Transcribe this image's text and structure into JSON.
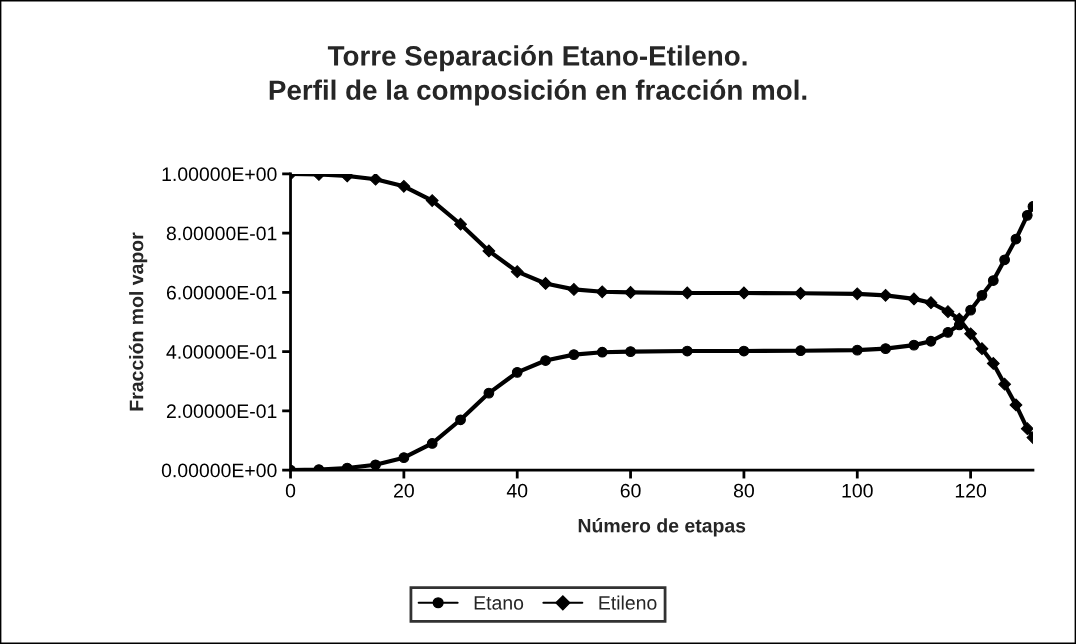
{
  "chart_data": {
    "type": "line",
    "title": "Torre Separación Etano-Etileno.\nPerfil de la composición en fracción mol.",
    "xlabel": "Número de etapas",
    "ylabel": "Fracción mol vapor",
    "x": [
      0,
      5,
      10,
      15,
      20,
      25,
      30,
      35,
      40,
      45,
      50,
      55,
      60,
      70,
      80,
      90,
      100,
      105,
      110,
      113,
      116,
      118,
      120,
      122,
      124,
      126,
      128,
      130,
      131
    ],
    "series": [
      {
        "name": "Etano",
        "color": "#000000",
        "marker": "circle",
        "values": [
          0.0,
          0.002,
          0.007,
          0.018,
          0.042,
          0.09,
          0.17,
          0.26,
          0.33,
          0.37,
          0.39,
          0.398,
          0.4,
          0.402,
          0.402,
          0.403,
          0.405,
          0.41,
          0.422,
          0.435,
          0.465,
          0.49,
          0.54,
          0.59,
          0.64,
          0.71,
          0.78,
          0.86,
          0.89
        ]
      },
      {
        "name": "Etileno",
        "color": "#000000",
        "marker": "diamond",
        "values": [
          1.0,
          0.998,
          0.993,
          0.982,
          0.958,
          0.91,
          0.83,
          0.74,
          0.67,
          0.63,
          0.61,
          0.602,
          0.6,
          0.598,
          0.598,
          0.597,
          0.595,
          0.59,
          0.578,
          0.565,
          0.535,
          0.51,
          0.46,
          0.41,
          0.36,
          0.29,
          0.22,
          0.14,
          0.11
        ]
      }
    ],
    "xlim": [
      0,
      131
    ],
    "xticks": [
      0,
      20,
      40,
      60,
      80,
      100,
      120
    ],
    "ylim": [
      0,
      1
    ],
    "yticks": [
      {
        "value": 0,
        "label": "0.00000E+00"
      },
      {
        "value": 0.2,
        "label": "2.00000E-01"
      },
      {
        "value": 0.4,
        "label": "4.00000E-01"
      },
      {
        "value": 0.6,
        "label": "6.00000E-01"
      },
      {
        "value": 0.8,
        "label": "8.00000E-01"
      },
      {
        "value": 1.0,
        "label": "1.00000E+00"
      }
    ],
    "grid": false,
    "legend": "bottom",
    "line_style": "solid"
  }
}
